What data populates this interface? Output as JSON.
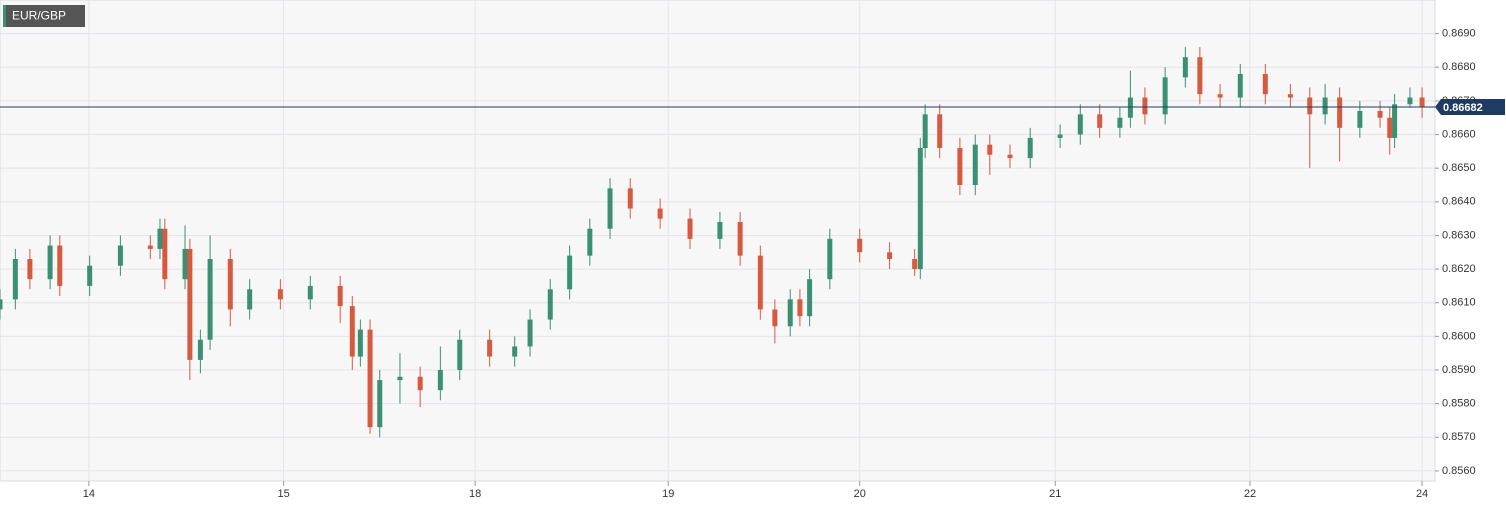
{
  "chart_data": {
    "type": "candlestick",
    "title": "EUR/GBP",
    "up_color": "#3b8f73",
    "down_color": "#d65a40",
    "last_color": "#1f3b63",
    "grid": true,
    "xlim": [
      0,
      177.6
    ],
    "ylim": [
      0.8557,
      0.87
    ],
    "xticks": [
      {
        "value": 11.0,
        "label": "14"
      },
      {
        "value": 35.1,
        "label": "15"
      },
      {
        "value": 58.8,
        "label": "18"
      },
      {
        "value": 82.7,
        "label": "19"
      },
      {
        "value": 106.4,
        "label": "20"
      },
      {
        "value": 130.6,
        "label": "21"
      },
      {
        "value": 154.7,
        "label": "22"
      },
      {
        "value": 176.0,
        "label": "24"
      }
    ],
    "yticks": [
      {
        "value": 0.856,
        "label": "0.8560"
      },
      {
        "value": 0.857,
        "label": "0.8570"
      },
      {
        "value": 0.858,
        "label": "0.8580"
      },
      {
        "value": 0.859,
        "label": "0.8590"
      },
      {
        "value": 0.86,
        "label": "0.8600"
      },
      {
        "value": 0.861,
        "label": "0.8610"
      },
      {
        "value": 0.862,
        "label": "0.8620"
      },
      {
        "value": 0.863,
        "label": "0.8630"
      },
      {
        "value": 0.864,
        "label": "0.8640"
      },
      {
        "value": 0.865,
        "label": "0.8650"
      },
      {
        "value": 0.866,
        "label": "0.8660"
      },
      {
        "value": 0.867,
        "label": "0.8670"
      },
      {
        "value": 0.868,
        "label": "0.8680"
      },
      {
        "value": 0.869,
        "label": "0.8690"
      }
    ],
    "x": [
      0,
      1.9,
      3.7,
      6.2,
      7.4,
      11.1,
      14.9,
      18.6,
      19.8,
      20.4,
      22.9,
      23.5,
      24.8,
      26.0,
      28.5,
      30.9,
      34.7,
      38.4,
      42.1,
      43.6,
      44.6,
      45.8,
      47.0,
      49.5,
      52.0,
      54.5,
      56.9,
      60.6,
      63.7,
      65.6,
      68.1,
      70.5,
      73.0,
      75.5,
      78.0,
      81.7,
      85.4,
      89.1,
      91.6,
      94.1,
      95.9,
      97.8,
      99.0,
      100.2,
      102.7,
      106.4,
      110.1,
      113.2,
      113.9,
      114.5,
      116.3,
      118.8,
      120.7,
      122.5,
      125.0,
      127.5,
      131.2,
      133.7,
      136.1,
      138.6,
      139.9,
      141.7,
      144.2,
      146.7,
      148.5,
      151.0,
      153.5,
      156.6,
      159.7,
      162.1,
      164.0,
      165.8,
      168.3,
      170.8,
      172.0,
      172.6,
      174.5,
      176.0
    ],
    "open": [
      0.8608,
      0.8611,
      0.8623,
      0.8617,
      0.8627,
      0.8615,
      0.8621,
      0.8627,
      0.8626,
      0.8632,
      0.8617,
      0.8626,
      0.8593,
      0.8599,
      0.8623,
      0.8608,
      0.8614,
      0.8611,
      0.8615,
      0.8609,
      0.8594,
      0.8602,
      0.8573,
      0.8587,
      0.8588,
      0.8584,
      0.859,
      0.8599,
      0.8594,
      0.8597,
      0.8605,
      0.8614,
      0.8624,
      0.8632,
      0.8644,
      0.8638,
      0.8635,
      0.8629,
      0.8634,
      0.8624,
      0.8608,
      0.8603,
      0.8611,
      0.8606,
      0.8617,
      0.8629,
      0.8625,
      0.8623,
      0.862,
      0.8656,
      0.8666,
      0.8656,
      0.8645,
      0.8657,
      0.8654,
      0.8653,
      0.8659,
      0.866,
      0.8666,
      0.8662,
      0.8665,
      0.8671,
      0.8666,
      0.8677,
      0.8683,
      0.8672,
      0.8671,
      0.8678,
      0.8672,
      0.8671,
      0.8666,
      0.8671,
      0.8662,
      0.8667,
      0.8665,
      0.8659,
      0.8669,
      0.8671
    ],
    "high": [
      0.8614,
      0.8626,
      0.8626,
      0.863,
      0.863,
      0.8624,
      0.863,
      0.863,
      0.8635,
      0.8635,
      0.8633,
      0.8629,
      0.8602,
      0.863,
      0.8626,
      0.8617,
      0.8617,
      0.8618,
      0.8618,
      0.8612,
      0.8605,
      0.8605,
      0.859,
      0.8595,
      0.8591,
      0.8597,
      0.8602,
      0.8602,
      0.86,
      0.8608,
      0.8617,
      0.8627,
      0.8635,
      0.8647,
      0.8647,
      0.8641,
      0.8638,
      0.8637,
      0.8637,
      0.8627,
      0.8611,
      0.8614,
      0.8614,
      0.862,
      0.8632,
      0.8632,
      0.8628,
      0.8626,
      0.8659,
      0.8669,
      0.8669,
      0.8659,
      0.866,
      0.866,
      0.8657,
      0.8662,
      0.8663,
      0.8669,
      0.8669,
      0.8668,
      0.8679,
      0.8674,
      0.868,
      0.8686,
      0.8686,
      0.8675,
      0.8681,
      0.8681,
      0.8675,
      0.8674,
      0.8675,
      0.8674,
      0.867,
      0.867,
      0.8668,
      0.8672,
      0.8674,
      0.8674
    ],
    "low": [
      0.8605,
      0.8608,
      0.8614,
      0.8614,
      0.8612,
      0.8612,
      0.8618,
      0.8623,
      0.8623,
      0.8614,
      0.8614,
      0.8587,
      0.8589,
      0.8596,
      0.8603,
      0.8605,
      0.8608,
      0.8608,
      0.8604,
      0.859,
      0.8591,
      0.8571,
      0.857,
      0.858,
      0.8579,
      0.8581,
      0.8587,
      0.8591,
      0.8591,
      0.8594,
      0.8602,
      0.8611,
      0.8621,
      0.8629,
      0.8635,
      0.8632,
      0.8626,
      0.8626,
      0.8621,
      0.8605,
      0.8598,
      0.86,
      0.8603,
      0.8603,
      0.8614,
      0.8622,
      0.862,
      0.8618,
      0.8617,
      0.8653,
      0.8653,
      0.8642,
      0.8642,
      0.8648,
      0.865,
      0.865,
      0.8656,
      0.8657,
      0.8659,
      0.8659,
      0.8662,
      0.8663,
      0.8663,
      0.8674,
      0.8669,
      0.8668,
      0.8668,
      0.8669,
      0.8668,
      0.865,
      0.8663,
      0.8652,
      0.8659,
      0.8662,
      0.8654,
      0.8656,
      0.8668,
      0.8665
    ],
    "close": [
      0.8611,
      0.8623,
      0.8617,
      0.8627,
      0.8615,
      0.8621,
      0.8627,
      0.8626,
      0.8632,
      0.8617,
      0.8626,
      0.8593,
      0.8599,
      0.8623,
      0.8608,
      0.8614,
      0.8611,
      0.8615,
      0.8609,
      0.8594,
      0.8602,
      0.8573,
      0.8587,
      0.8588,
      0.8584,
      0.859,
      0.8599,
      0.8594,
      0.8597,
      0.8605,
      0.8614,
      0.8624,
      0.8632,
      0.8644,
      0.8638,
      0.8635,
      0.8629,
      0.8634,
      0.8624,
      0.8608,
      0.8603,
      0.8611,
      0.8606,
      0.8617,
      0.8629,
      0.8625,
      0.8623,
      0.862,
      0.8656,
      0.8666,
      0.8656,
      0.8645,
      0.8657,
      0.8654,
      0.8653,
      0.8659,
      0.866,
      0.8666,
      0.8662,
      0.8665,
      0.8671,
      0.8666,
      0.8677,
      0.8683,
      0.8672,
      0.8671,
      0.8678,
      0.8672,
      0.8671,
      0.8666,
      0.8671,
      0.8662,
      0.8667,
      0.8665,
      0.8659,
      0.8669,
      0.8671,
      0.86682
    ]
  }
}
